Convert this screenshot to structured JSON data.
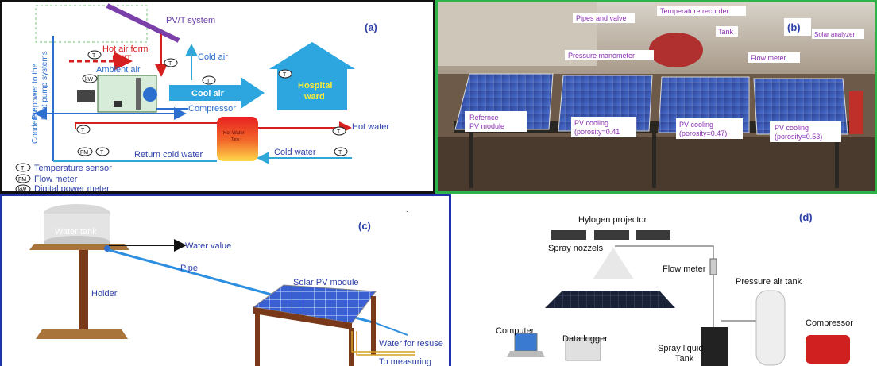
{
  "panel_a": {
    "tag": "(a)",
    "pvt_system": "PV/T system",
    "pv_power": "PV power to the",
    "pv_power2": "heat pump systems",
    "hot_air_form": "Hot air form",
    "pvt": "PV/T",
    "ambient_air": "Ambient air",
    "cold_air": "Cold air",
    "cool_air": "Cool air",
    "hospital": "Hospital",
    "ward": "ward",
    "compressor": "Compressor",
    "condenser": "Condenser",
    "hot_water": "Hot water",
    "hot_water_tank": "Hot Water",
    "tank_word": "Tank",
    "return_cold_water": "Return cold water",
    "cold_water": "Cold water",
    "legend_t": "Temperature sensor",
    "legend_fm": "Flow meter",
    "legend_kw": "Digital power meter",
    "sym_t": "T",
    "sym_fm": "FM",
    "sym_kw": "kW"
  },
  "panel_b": {
    "tag": "(b)",
    "pipes_valve": "Pipes and valve",
    "temp_recorder": "Temperature recorder",
    "tank": "Tank",
    "solar_analyzer": "Solar analyzer",
    "pressure_manometer": "Pressure manometer",
    "flow_meter": "Flow meter",
    "ref1": "Refernce",
    "ref2": "PV module",
    "c1a": "PV cooling",
    "c1b": "(porosity=0.41",
    "c2a": "PV cooling",
    "c2b": "(porosity=0.47)",
    "c3a": "PV cooling",
    "c3b": "(porosity=0.53)"
  },
  "panel_c": {
    "tag": "(c)",
    "water_tank": "Water tank",
    "water_value": "Water value",
    "pipe": "Pipe",
    "holder": "Holder",
    "solar_pv": "Solar PV module",
    "water_reuse": "Water for resuse",
    "to_measuring": "To measuring"
  },
  "panel_d": {
    "tag": "(d)",
    "projector": "Hylogen projector",
    "spray_nozzels": "Spray nozzels",
    "flow_meter": "Flow meter",
    "pressure_tank": "Pressure air tank",
    "compressor": "Compressor",
    "computer": "Computer",
    "data_logger": "Data logger",
    "spray_liquid": "Spray liquid",
    "tank_word": "Tank"
  }
}
